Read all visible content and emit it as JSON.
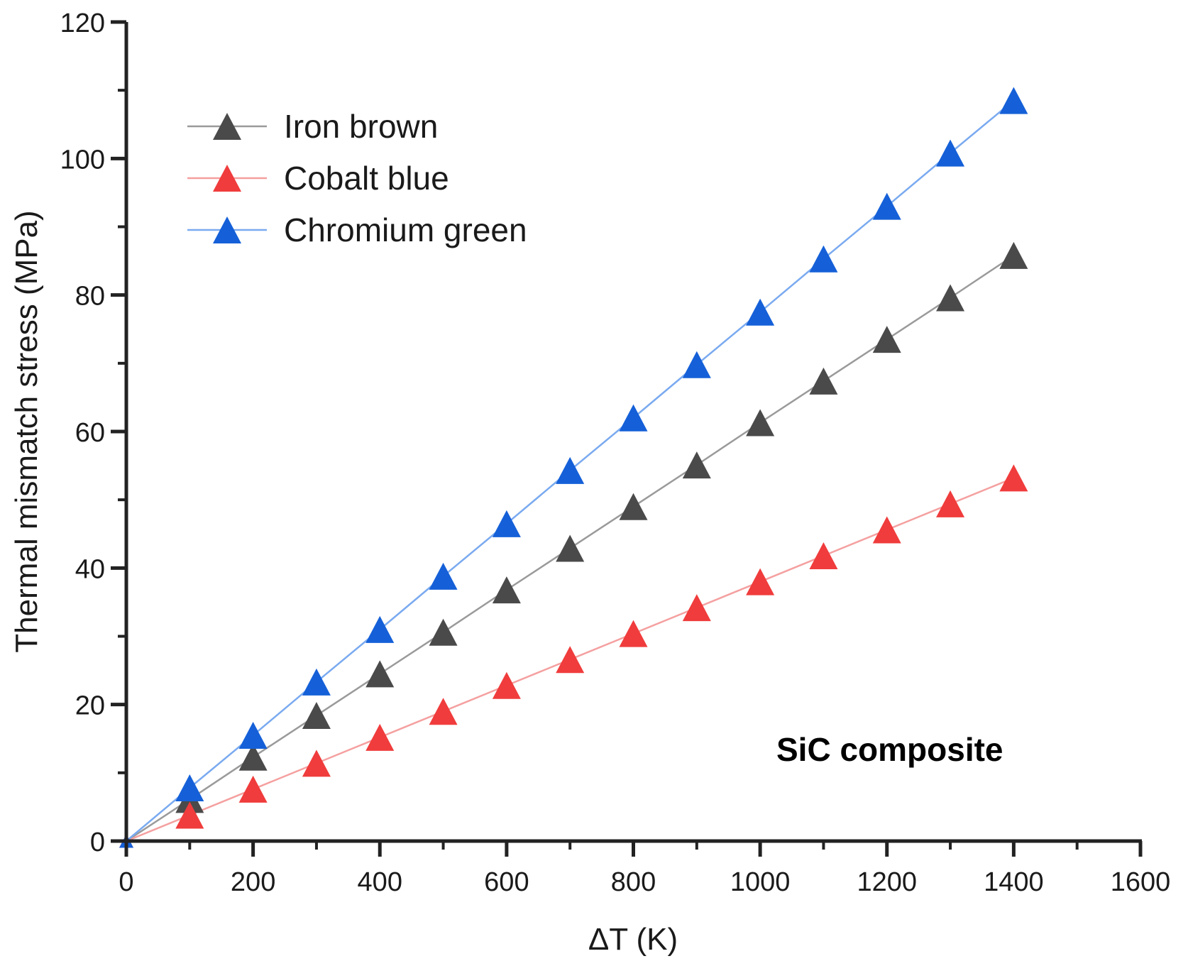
{
  "chart_data": {
    "type": "line",
    "title": "",
    "xlabel": "ΔT (K)",
    "ylabel": "Thermal mismatch stress (MPa)",
    "xlim": [
      0,
      1600
    ],
    "ylim": [
      0,
      120
    ],
    "xticks": [
      0,
      200,
      400,
      600,
      800,
      1000,
      1200,
      1400,
      1600
    ],
    "yticks": [
      0,
      20,
      40,
      60,
      80,
      100,
      120
    ],
    "xtick_labels": [
      "0",
      "200",
      "400",
      "600",
      "800",
      "1000",
      "1200",
      "1400",
      "1600"
    ],
    "ytick_labels": [
      "0",
      "20",
      "40",
      "60",
      "80",
      "100",
      "120"
    ],
    "grid": false,
    "legend_position": "top-left",
    "annotation": "SiC composite",
    "x": [
      0,
      100,
      200,
      300,
      400,
      500,
      600,
      700,
      800,
      900,
      1000,
      1100,
      1200,
      1300,
      1400
    ],
    "series": [
      {
        "name": "Iron brown",
        "marker": "triangle",
        "marker_color": "#4a4a4a",
        "line_color": "#9a9a9a",
        "values": [
          0,
          6.1,
          12.3,
          18.4,
          24.5,
          30.6,
          36.8,
          42.9,
          49.0,
          55.1,
          61.3,
          67.4,
          73.5,
          79.6,
          85.8
        ]
      },
      {
        "name": "Cobalt blue",
        "marker": "triangle",
        "marker_color": "#f03c3c",
        "line_color": "#f5a0a0",
        "values": [
          0,
          3.8,
          7.6,
          11.4,
          15.2,
          19.0,
          22.8,
          26.6,
          30.4,
          34.2,
          38.0,
          41.8,
          45.6,
          49.4,
          53.2
        ]
      },
      {
        "name": "Chromium green",
        "marker": "triangle",
        "marker_color": "#1560d8",
        "line_color": "#7aaaf0",
        "values": [
          0,
          7.8,
          15.5,
          23.3,
          31.0,
          38.8,
          46.5,
          54.3,
          62.0,
          69.8,
          77.5,
          85.3,
          93.0,
          100.8,
          108.5
        ]
      }
    ]
  }
}
